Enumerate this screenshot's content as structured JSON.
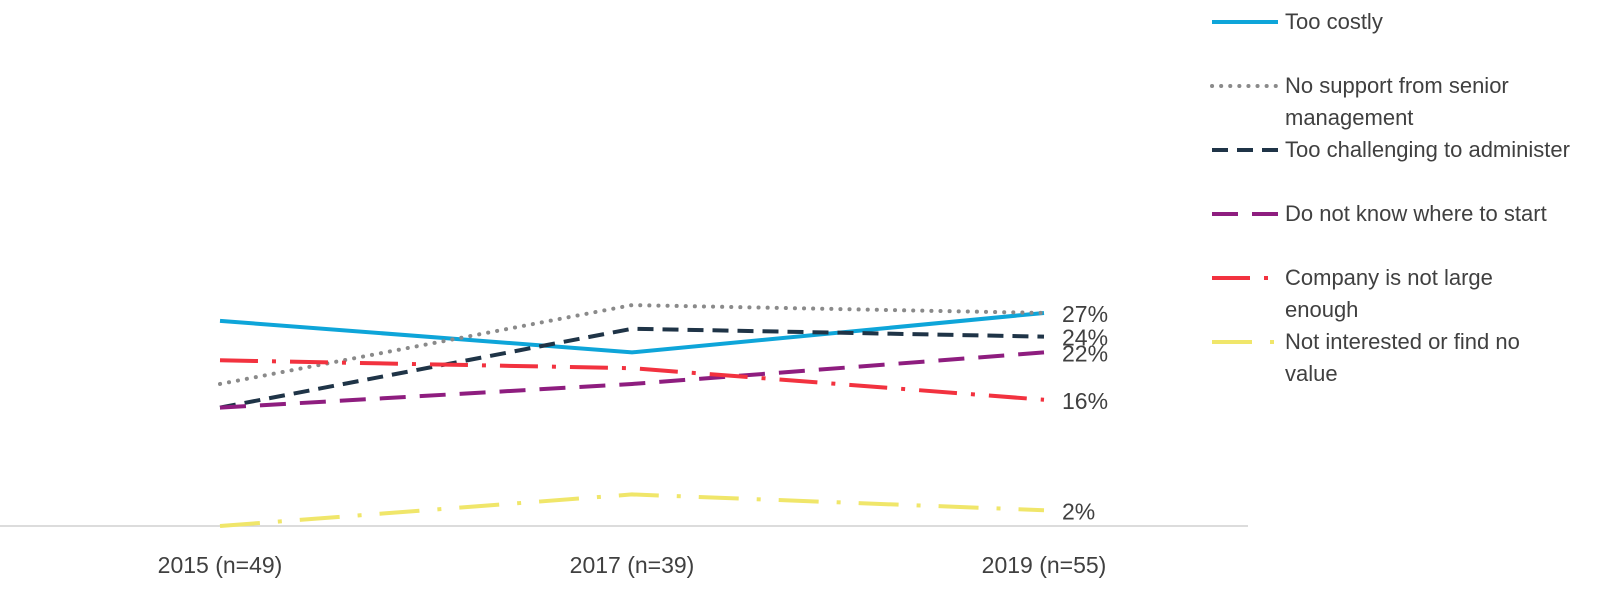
{
  "chart_data": {
    "type": "line",
    "categories": [
      "2015 (n=49)",
      "2017 (n=39)",
      "2019 (n=55)"
    ],
    "ylim": [
      0,
      30
    ],
    "legend": "right",
    "series": [
      {
        "name": "Too costly",
        "color": "#0ea5d9",
        "dash": "solid",
        "values": [
          26,
          22,
          27
        ],
        "value_labels": [
          null,
          null,
          "27%"
        ]
      },
      {
        "name": "No support from senior management",
        "color": "#8a8a8a",
        "dash": "dotted",
        "values": [
          18,
          28,
          27
        ]
      },
      {
        "name": "Too challenging to administer",
        "color": "#1f3447",
        "dash": "dashed",
        "values": [
          15,
          25,
          24
        ],
        "value_labels": [
          null,
          null,
          "24%"
        ]
      },
      {
        "name": "Do not know where to start",
        "color": "#8e1d7f",
        "dash": "long-dash",
        "values": [
          15,
          18,
          22
        ],
        "value_labels": [
          null,
          null,
          "22%"
        ]
      },
      {
        "name": "Company is not large enough",
        "color": "#f2323f",
        "dash": "long-dash-dot",
        "values": [
          21,
          20,
          16
        ],
        "value_labels": [
          null,
          null,
          "16%"
        ]
      },
      {
        "name": "Not interested or find no value",
        "color": "#f0e66a",
        "dash": "long-dash-dot-long",
        "values": [
          0,
          4,
          2
        ],
        "value_labels": [
          null,
          null,
          "2%"
        ]
      }
    ]
  }
}
